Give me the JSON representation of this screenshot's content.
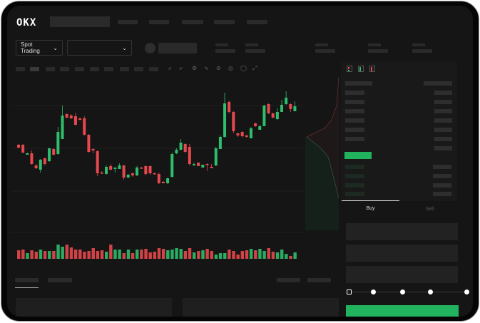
{
  "logo_text": "OKX",
  "toolbar": {
    "market_select_label": "Spot Trading",
    "chevron": "chevron-down-icon"
  },
  "order_form": {
    "tabs": [
      "Buy",
      "Sell"
    ],
    "active_tab": "Buy",
    "slider_value_percent": 0,
    "slider_stops": [
      0,
      25,
      50,
      75,
      100
    ]
  },
  "colors": {
    "up": "#2ebd6b",
    "down": "#e5484d",
    "background": "#151515",
    "accent": "#22b35e"
  },
  "chart_data": {
    "type": "candlestick",
    "title": "",
    "xlabel": "",
    "ylabel": "",
    "ohlc": [
      [
        97,
        98,
        92,
        93
      ],
      [
        97,
        98,
        85,
        86
      ],
      [
        83,
        86,
        83,
        85
      ],
      [
        85,
        89,
        69,
        70
      ],
      [
        68,
        70,
        63,
        64
      ],
      [
        62,
        77,
        58,
        76
      ],
      [
        78,
        79,
        68,
        70
      ],
      [
        74,
        93,
        73,
        92
      ],
      [
        91,
        92,
        82,
        83
      ],
      [
        84,
        122,
        83,
        115
      ],
      [
        105,
        152,
        105,
        138
      ],
      [
        140,
        141,
        134,
        135
      ],
      [
        138,
        140,
        133,
        134
      ],
      [
        137,
        142,
        124,
        125
      ],
      [
        134,
        135,
        131,
        132
      ],
      [
        134,
        137,
        110,
        111
      ],
      [
        111,
        112,
        86,
        87
      ],
      [
        91,
        92,
        85,
        89
      ],
      [
        88,
        89,
        53,
        57
      ],
      [
        58,
        60,
        56,
        57
      ],
      [
        56,
        68,
        55,
        66
      ],
      [
        67,
        70,
        61,
        62
      ],
      [
        63,
        65,
        58,
        65
      ],
      [
        63,
        71,
        63,
        68
      ],
      [
        68,
        69,
        48,
        51
      ],
      [
        51,
        56,
        50,
        55
      ],
      [
        57,
        58,
        52,
        54
      ],
      [
        54,
        67,
        53,
        65
      ],
      [
        65,
        66,
        63,
        64
      ],
      [
        67,
        68,
        54,
        56
      ],
      [
        67,
        68,
        55,
        57
      ],
      [
        57,
        58,
        55,
        56
      ],
      [
        56,
        58,
        42,
        43
      ],
      [
        45,
        46,
        43,
        43
      ],
      [
        43,
        51,
        42,
        50
      ],
      [
        52,
        86,
        51,
        84
      ],
      [
        85,
        92,
        84,
        90
      ],
      [
        90,
        105,
        89,
        100
      ],
      [
        98,
        99,
        86,
        87
      ],
      [
        94,
        98,
        68,
        70
      ],
      [
        69,
        72,
        67,
        70
      ],
      [
        72,
        72,
        67,
        67
      ],
      [
        65,
        69,
        65,
        69
      ],
      [
        70,
        71,
        60,
        69
      ],
      [
        66,
        70,
        64,
        64
      ],
      [
        68,
        94,
        67,
        92
      ],
      [
        91,
        110,
        91,
        108
      ],
      [
        108,
        170,
        107,
        155
      ],
      [
        157,
        159,
        141,
        143
      ],
      [
        143,
        144,
        113,
        116
      ],
      [
        113,
        114,
        108,
        110
      ],
      [
        115,
        116,
        107,
        109
      ],
      [
        110,
        111,
        107,
        108
      ],
      [
        106,
        122,
        106,
        120
      ],
      [
        127,
        128,
        122,
        123
      ],
      [
        118,
        125,
        118,
        123
      ],
      [
        123,
        153,
        123,
        152
      ],
      [
        154,
        155,
        140,
        141
      ],
      [
        141,
        142,
        134,
        135
      ],
      [
        133,
        148,
        132,
        143
      ],
      [
        143,
        160,
        143,
        153
      ],
      [
        154,
        172,
        153,
        163
      ],
      [
        154,
        155,
        143,
        147
      ],
      [
        144,
        158,
        144,
        151
      ]
    ],
    "volume": [
      12,
      13,
      8,
      12,
      10,
      13,
      11,
      11,
      11,
      20,
      17,
      20,
      16,
      13,
      13,
      10,
      11,
      15,
      11,
      12,
      10,
      20,
      13,
      13,
      8,
      13,
      8,
      13,
      13,
      14,
      9,
      10,
      15,
      14,
      12,
      13,
      15,
      14,
      11,
      15,
      9,
      11,
      12,
      14,
      11,
      6,
      8,
      8,
      13,
      11,
      6,
      11,
      12,
      14,
      12,
      14,
      11,
      15,
      10,
      9,
      13,
      7,
      4,
      9
    ],
    "grid": true
  },
  "depth_chart": {
    "sides": [
      "asks",
      "bids"
    ]
  }
}
